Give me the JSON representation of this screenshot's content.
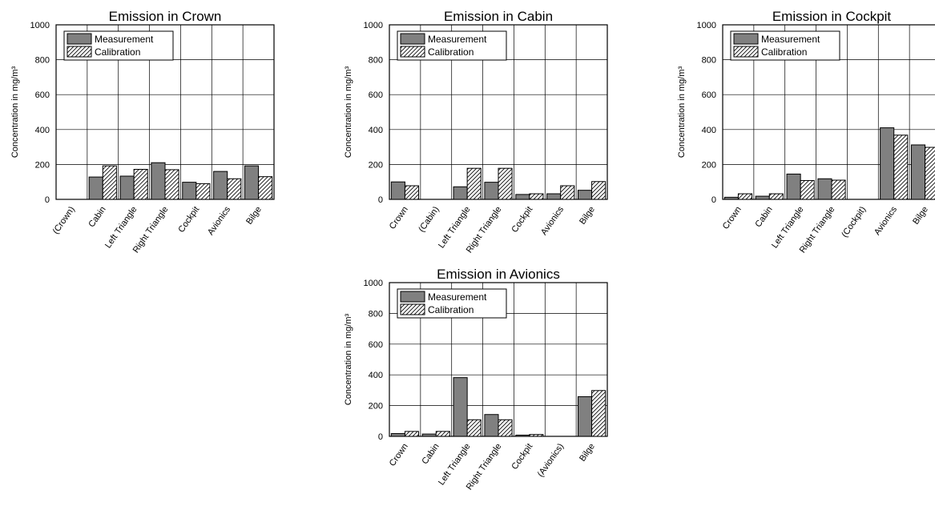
{
  "chart_data": [
    {
      "type": "bar",
      "title": "Emission in Crown",
      "ylabel": "Concentration in mg/m³",
      "xlabel": "",
      "ylim": [
        0,
        1000
      ],
      "yticks": [
        0,
        200,
        400,
        600,
        800,
        1000
      ],
      "grid": true,
      "legend": "top-left",
      "categories": [
        "(Crown)",
        "Cabin",
        "Left Triangle",
        "Right Triangle",
        "Cockpit",
        "Avionics",
        "Bilge"
      ],
      "series": [
        {
          "name": "Measurement",
          "values": [
            null,
            128,
            133,
            210,
            98,
            160,
            192
          ]
        },
        {
          "name": "Calibration",
          "values": [
            null,
            192,
            172,
            170,
            90,
            118,
            130
          ]
        }
      ]
    },
    {
      "type": "bar",
      "title": "Emission in Cabin",
      "ylabel": "Concentration in mg/m³",
      "xlabel": "",
      "ylim": [
        0,
        1000
      ],
      "yticks": [
        0,
        200,
        400,
        600,
        800,
        1000
      ],
      "grid": true,
      "legend": "top-left",
      "categories": [
        "Crown",
        "(Cabin)",
        "Left Triangle",
        "Right Triangle",
        "Cockpit",
        "Avionics",
        "Bilge"
      ],
      "series": [
        {
          "name": "Measurement",
          "values": [
            100,
            null,
            72,
            98,
            28,
            32,
            52
          ]
        },
        {
          "name": "Calibration",
          "values": [
            78,
            null,
            178,
            178,
            32,
            78,
            102
          ]
        }
      ]
    },
    {
      "type": "bar",
      "title": "Emission in Cockpit",
      "ylabel": "Concentration in mg/m³",
      "xlabel": "",
      "ylim": [
        0,
        1000
      ],
      "yticks": [
        0,
        200,
        400,
        600,
        800,
        1000
      ],
      "grid": true,
      "legend": "top-left",
      "categories": [
        "Crown",
        "Cabin",
        "Left Triangle",
        "Right Triangle",
        "(Cockpit)",
        "Avionics",
        "Bilge"
      ],
      "series": [
        {
          "name": "Measurement",
          "values": [
            12,
            18,
            145,
            118,
            null,
            410,
            312
          ]
        },
        {
          "name": "Calibration",
          "values": [
            32,
            32,
            108,
            110,
            null,
            368,
            298
          ]
        }
      ]
    },
    {
      "type": "bar",
      "title": "Emission in Avionics",
      "ylabel": "Concentration in mg/m³",
      "xlabel": "",
      "ylim": [
        0,
        1000
      ],
      "yticks": [
        0,
        200,
        400,
        600,
        800,
        1000
      ],
      "grid": true,
      "legend": "top-left",
      "categories": [
        "Crown",
        "Cabin",
        "Left Triangle",
        "Right Triangle",
        "Cockpit",
        "(Avionics)",
        "Bilge"
      ],
      "series": [
        {
          "name": "Measurement",
          "values": [
            18,
            15,
            382,
            142,
            8,
            null,
            258
          ]
        },
        {
          "name": "Calibration",
          "values": [
            32,
            32,
            108,
            108,
            12,
            null,
            298
          ]
        }
      ]
    }
  ],
  "colors": {
    "measurement_fill": "#808080",
    "calibration_fill": "#ffffff",
    "hatch": "#000000",
    "axis": "#000000",
    "grid": "#000000"
  }
}
